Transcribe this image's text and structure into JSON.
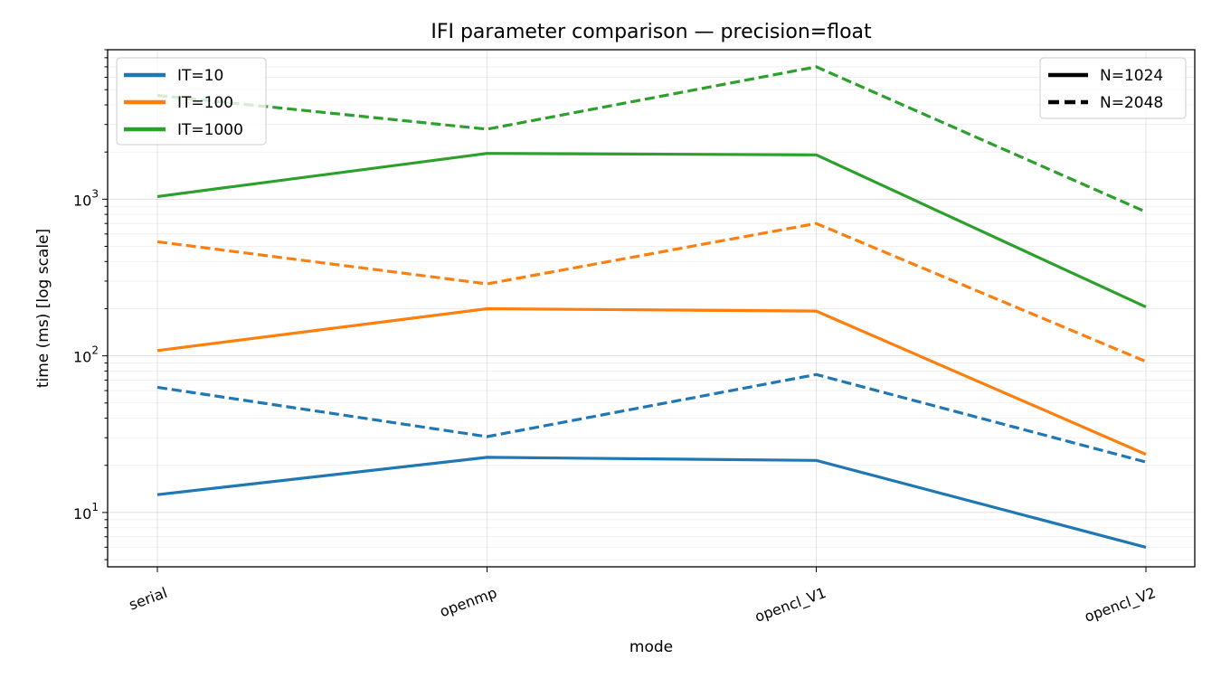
{
  "chart_data": {
    "type": "line",
    "title": "IFI parameter comparison — precision=float",
    "xlabel": "mode",
    "ylabel": "time (ms) [log scale]",
    "categories": [
      "serial",
      "openmp",
      "opencl_V1",
      "opencl_V2"
    ],
    "y_scale": "log",
    "ylim": [
      4.5,
      9000
    ],
    "y_ticks": [
      {
        "value": 10,
        "base": "10",
        "exp": "1"
      },
      {
        "value": 100,
        "base": "10",
        "exp": "2"
      },
      {
        "value": 1000,
        "base": "10",
        "exp": "3"
      }
    ],
    "grid": true,
    "series": [
      {
        "name": "IT=10",
        "size": "N=1024",
        "color": "#1f77b4",
        "style": "solid",
        "values": [
          13,
          22.5,
          21.5,
          6
        ]
      },
      {
        "name": "IT=10",
        "size": "N=2048",
        "color": "#1f77b4",
        "style": "dashed",
        "values": [
          63,
          30.5,
          76,
          21
        ]
      },
      {
        "name": "IT=100",
        "size": "N=1024",
        "color": "#ff7f0e",
        "style": "solid",
        "values": [
          108,
          200,
          193,
          23.5
        ]
      },
      {
        "name": "IT=100",
        "size": "N=2048",
        "color": "#ff7f0e",
        "style": "dashed",
        "values": [
          535,
          288,
          700,
          92
        ]
      },
      {
        "name": "IT=1000",
        "size": "N=1024",
        "color": "#2ca02c",
        "style": "solid",
        "values": [
          1040,
          1960,
          1920,
          205
        ]
      },
      {
        "name": "IT=1000",
        "size": "N=2048",
        "color": "#2ca02c",
        "style": "dashed",
        "values": [
          4600,
          2800,
          7000,
          830
        ]
      }
    ],
    "legend_colors": {
      "position": "top-left",
      "entries": [
        {
          "label": "IT=10",
          "color": "#1f77b4"
        },
        {
          "label": "IT=100",
          "color": "#ff7f0e"
        },
        {
          "label": "IT=1000",
          "color": "#2ca02c"
        }
      ]
    },
    "legend_styles": {
      "position": "top-right",
      "entries": [
        {
          "label": "N=1024",
          "style": "solid"
        },
        {
          "label": "N=2048",
          "style": "dashed"
        }
      ]
    }
  }
}
